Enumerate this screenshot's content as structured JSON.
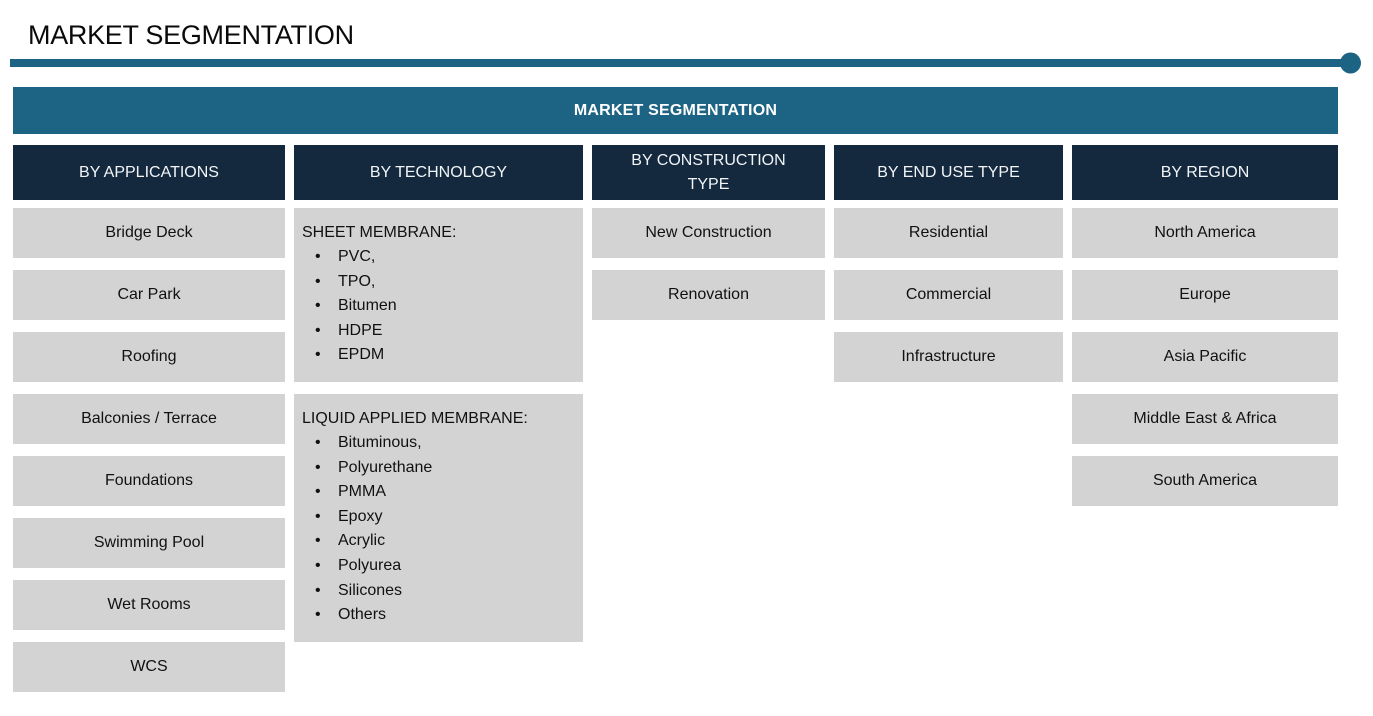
{
  "page": {
    "title": "MARKET SEGMENTATION"
  },
  "banner": {
    "label": "MARKET SEGMENTATION"
  },
  "colors": {
    "teal": "#1C6384",
    "navy": "#14293E",
    "box_gray": "#D3D3D3"
  },
  "columns": [
    {
      "header": "BY APPLICATIONS",
      "items": [
        "Bridge Deck",
        "Car Park",
        "Roofing",
        "Balconies / Terrace",
        "Foundations",
        "Swimming Pool",
        "Wet Rooms",
        "WCS"
      ]
    },
    {
      "header": "BY TECHNOLOGY",
      "groups": [
        {
          "title": "SHEET MEMBRANE:",
          "bullets": [
            "PVC,",
            "TPO,",
            "Bitumen",
            "HDPE",
            "EPDM"
          ]
        },
        {
          "title": "LIQUID APPLIED MEMBRANE:",
          "bullets": [
            "Bituminous,",
            "Polyurethane",
            "PMMA",
            "Epoxy",
            "Acrylic",
            "Polyurea",
            "Silicones",
            "Others"
          ]
        }
      ]
    },
    {
      "header": "BY CONSTRUCTION TYPE",
      "items": [
        "New Construction",
        "Renovation"
      ]
    },
    {
      "header": "BY END USE TYPE",
      "items": [
        "Residential",
        "Commercial",
        "Infrastructure"
      ]
    },
    {
      "header": "BY REGION",
      "items": [
        "North America",
        "Europe",
        "Asia Pacific",
        "Middle East & Africa",
        "South America"
      ]
    }
  ]
}
